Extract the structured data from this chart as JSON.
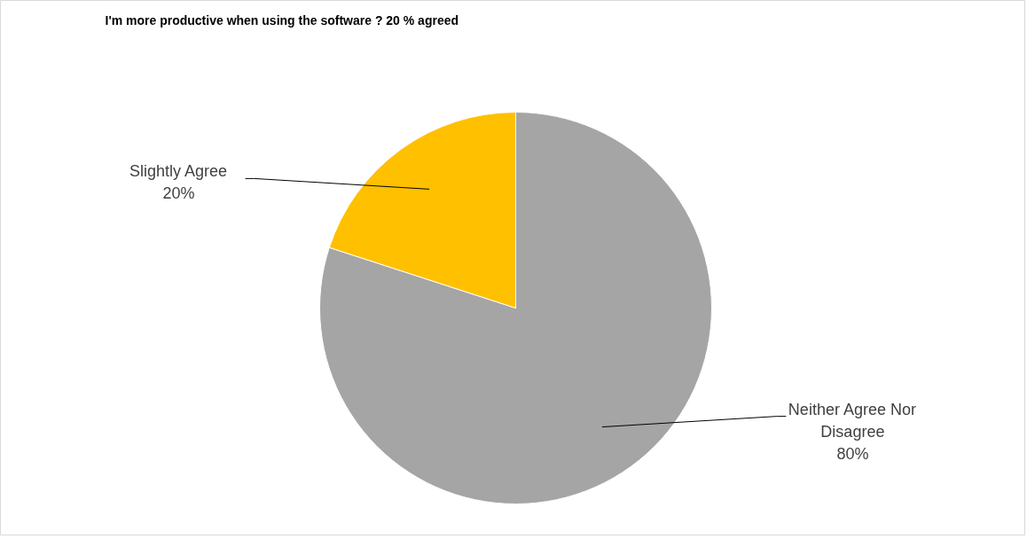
{
  "chart_data": {
    "type": "pie",
    "title": "I'm more productive when using the software ? 20 % agreed",
    "categories": [
      "Neither Agree Nor Disagree",
      "Slightly Agree"
    ],
    "values": [
      80,
      20
    ],
    "colors": [
      "#a5a5a5",
      "#ffc000"
    ],
    "value_labels": [
      "80%",
      "20%"
    ]
  }
}
